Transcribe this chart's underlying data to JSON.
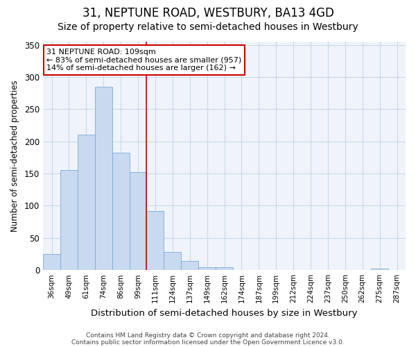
{
  "title1": "31, NEPTUNE ROAD, WESTBURY, BA13 4GD",
  "title2": "Size of property relative to semi-detached houses in Westbury",
  "xlabel": "Distribution of semi-detached houses by size in Westbury",
  "ylabel": "Number of semi-detached properties",
  "categories": [
    "36sqm",
    "49sqm",
    "61sqm",
    "74sqm",
    "86sqm",
    "99sqm",
    "111sqm",
    "124sqm",
    "137sqm",
    "149sqm",
    "162sqm",
    "174sqm",
    "187sqm",
    "199sqm",
    "212sqm",
    "224sqm",
    "237sqm",
    "250sqm",
    "262sqm",
    "275sqm",
    "287sqm"
  ],
  "values": [
    25,
    155,
    210,
    285,
    182,
    152,
    92,
    28,
    14,
    5,
    5,
    0,
    0,
    0,
    0,
    0,
    0,
    0,
    0,
    2,
    0
  ],
  "bar_color": "#c9d9f0",
  "bar_edge_color": "#7aadd4",
  "vline_color": "#cc0000",
  "annotation_line1": "31 NEPTUNE ROAD: 109sqm",
  "annotation_line2": "← 83% of semi-detached houses are smaller (957)",
  "annotation_line3": "14% of semi-detached houses are larger (162) →",
  "annotation_box_color": "#ffffff",
  "annotation_box_edge_color": "#cc0000",
  "footer1": "Contains HM Land Registry data © Crown copyright and database right 2024.",
  "footer2": "Contains public sector information licensed under the Open Government Licence v3.0.",
  "ylim": [
    0,
    355
  ],
  "yticks": [
    0,
    50,
    100,
    150,
    200,
    250,
    300,
    350
  ],
  "title1_fontsize": 12,
  "title2_fontsize": 10,
  "bg_color": "#ffffff",
  "plot_bg_color": "#f0f4fa",
  "grid_color": "#c8d8eb",
  "vline_x_index": 6
}
